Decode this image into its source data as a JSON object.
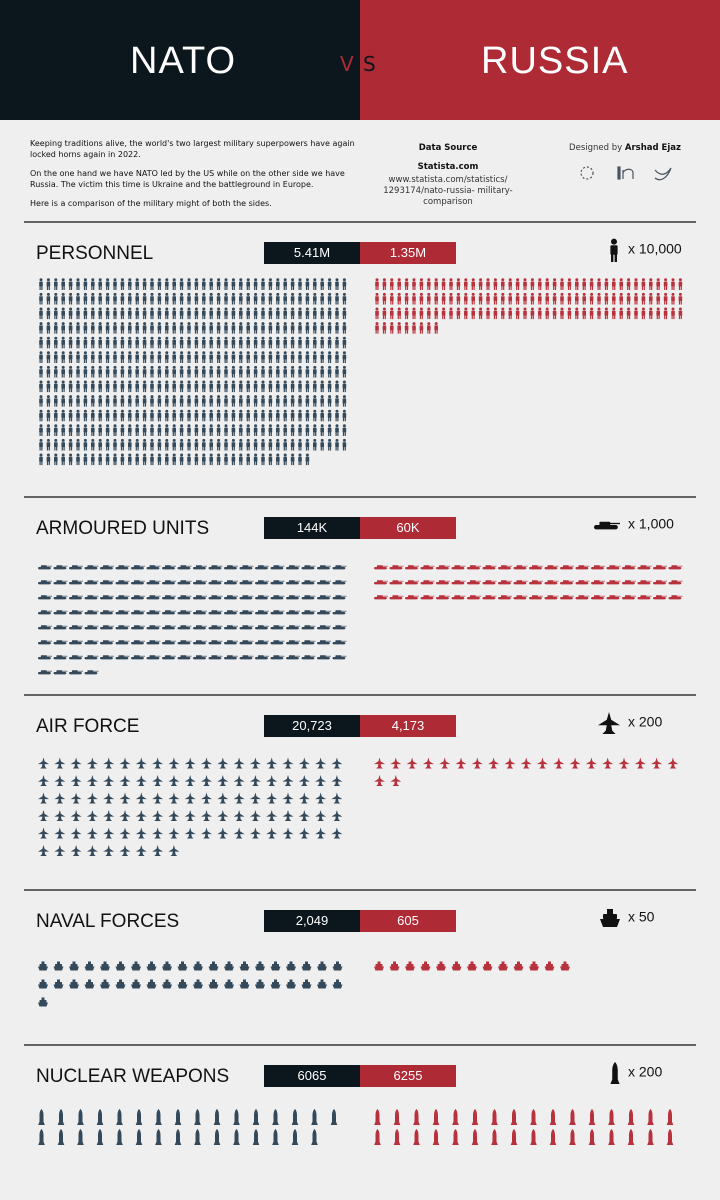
{
  "header": {
    "left": "NATO",
    "vs_left": "V",
    "vs_right": "S",
    "right": "RUSSIA"
  },
  "intro": {
    "paragraphs": [
      "Keeping traditions alive, the world's two largest military superpowers have again locked horns again in 2022.",
      "On the one hand we have NATO led by the US while on the other side we have Russia. The victim this time is Ukraine and the battleground in Europe.",
      "Here is a comparison of the military might of both the sides."
    ]
  },
  "source": {
    "heading": "Data Source",
    "name": "Statista.com",
    "url": "www.statista.com/statistics/ 1293174/nato-russia- military-comparison"
  },
  "credit": {
    "prefix": "Designed by",
    "name": "Arshad Ejaz"
  },
  "sections": [
    {
      "title": "PERSONNEL",
      "nato": {
        "value": 5410000,
        "label": "5.41M"
      },
      "russia": {
        "value": 1350000,
        "label": "1.35M"
      },
      "unit": {
        "value": 10000,
        "label": "x 10,000"
      }
    },
    {
      "title": "ARMOURED UNITS",
      "nato": {
        "value": 144000,
        "label": "144K"
      },
      "russia": {
        "value": 60000,
        "label": "60K"
      },
      "unit": {
        "value": 1000,
        "label": "x 1,000"
      }
    },
    {
      "title": "AIR FORCE",
      "nato": {
        "value": 20723,
        "label": "20,723"
      },
      "russia": {
        "value": 4173,
        "label": "4,173"
      },
      "unit": {
        "value": 200,
        "label": "x 200"
      }
    },
    {
      "title": "NAVAL FORCES",
      "nato": {
        "value": 2049,
        "label": "2,049"
      },
      "russia": {
        "value": 605,
        "label": "605"
      },
      "unit": {
        "value": 50,
        "label": "x 50"
      }
    },
    {
      "title": "NUCLEAR WEAPONS",
      "nato": {
        "value": 6065,
        "label": "6065"
      },
      "russia": {
        "value": 6255,
        "label": "6255"
      },
      "unit": {
        "value": 200,
        "label": "x 200"
      }
    }
  ]
}
